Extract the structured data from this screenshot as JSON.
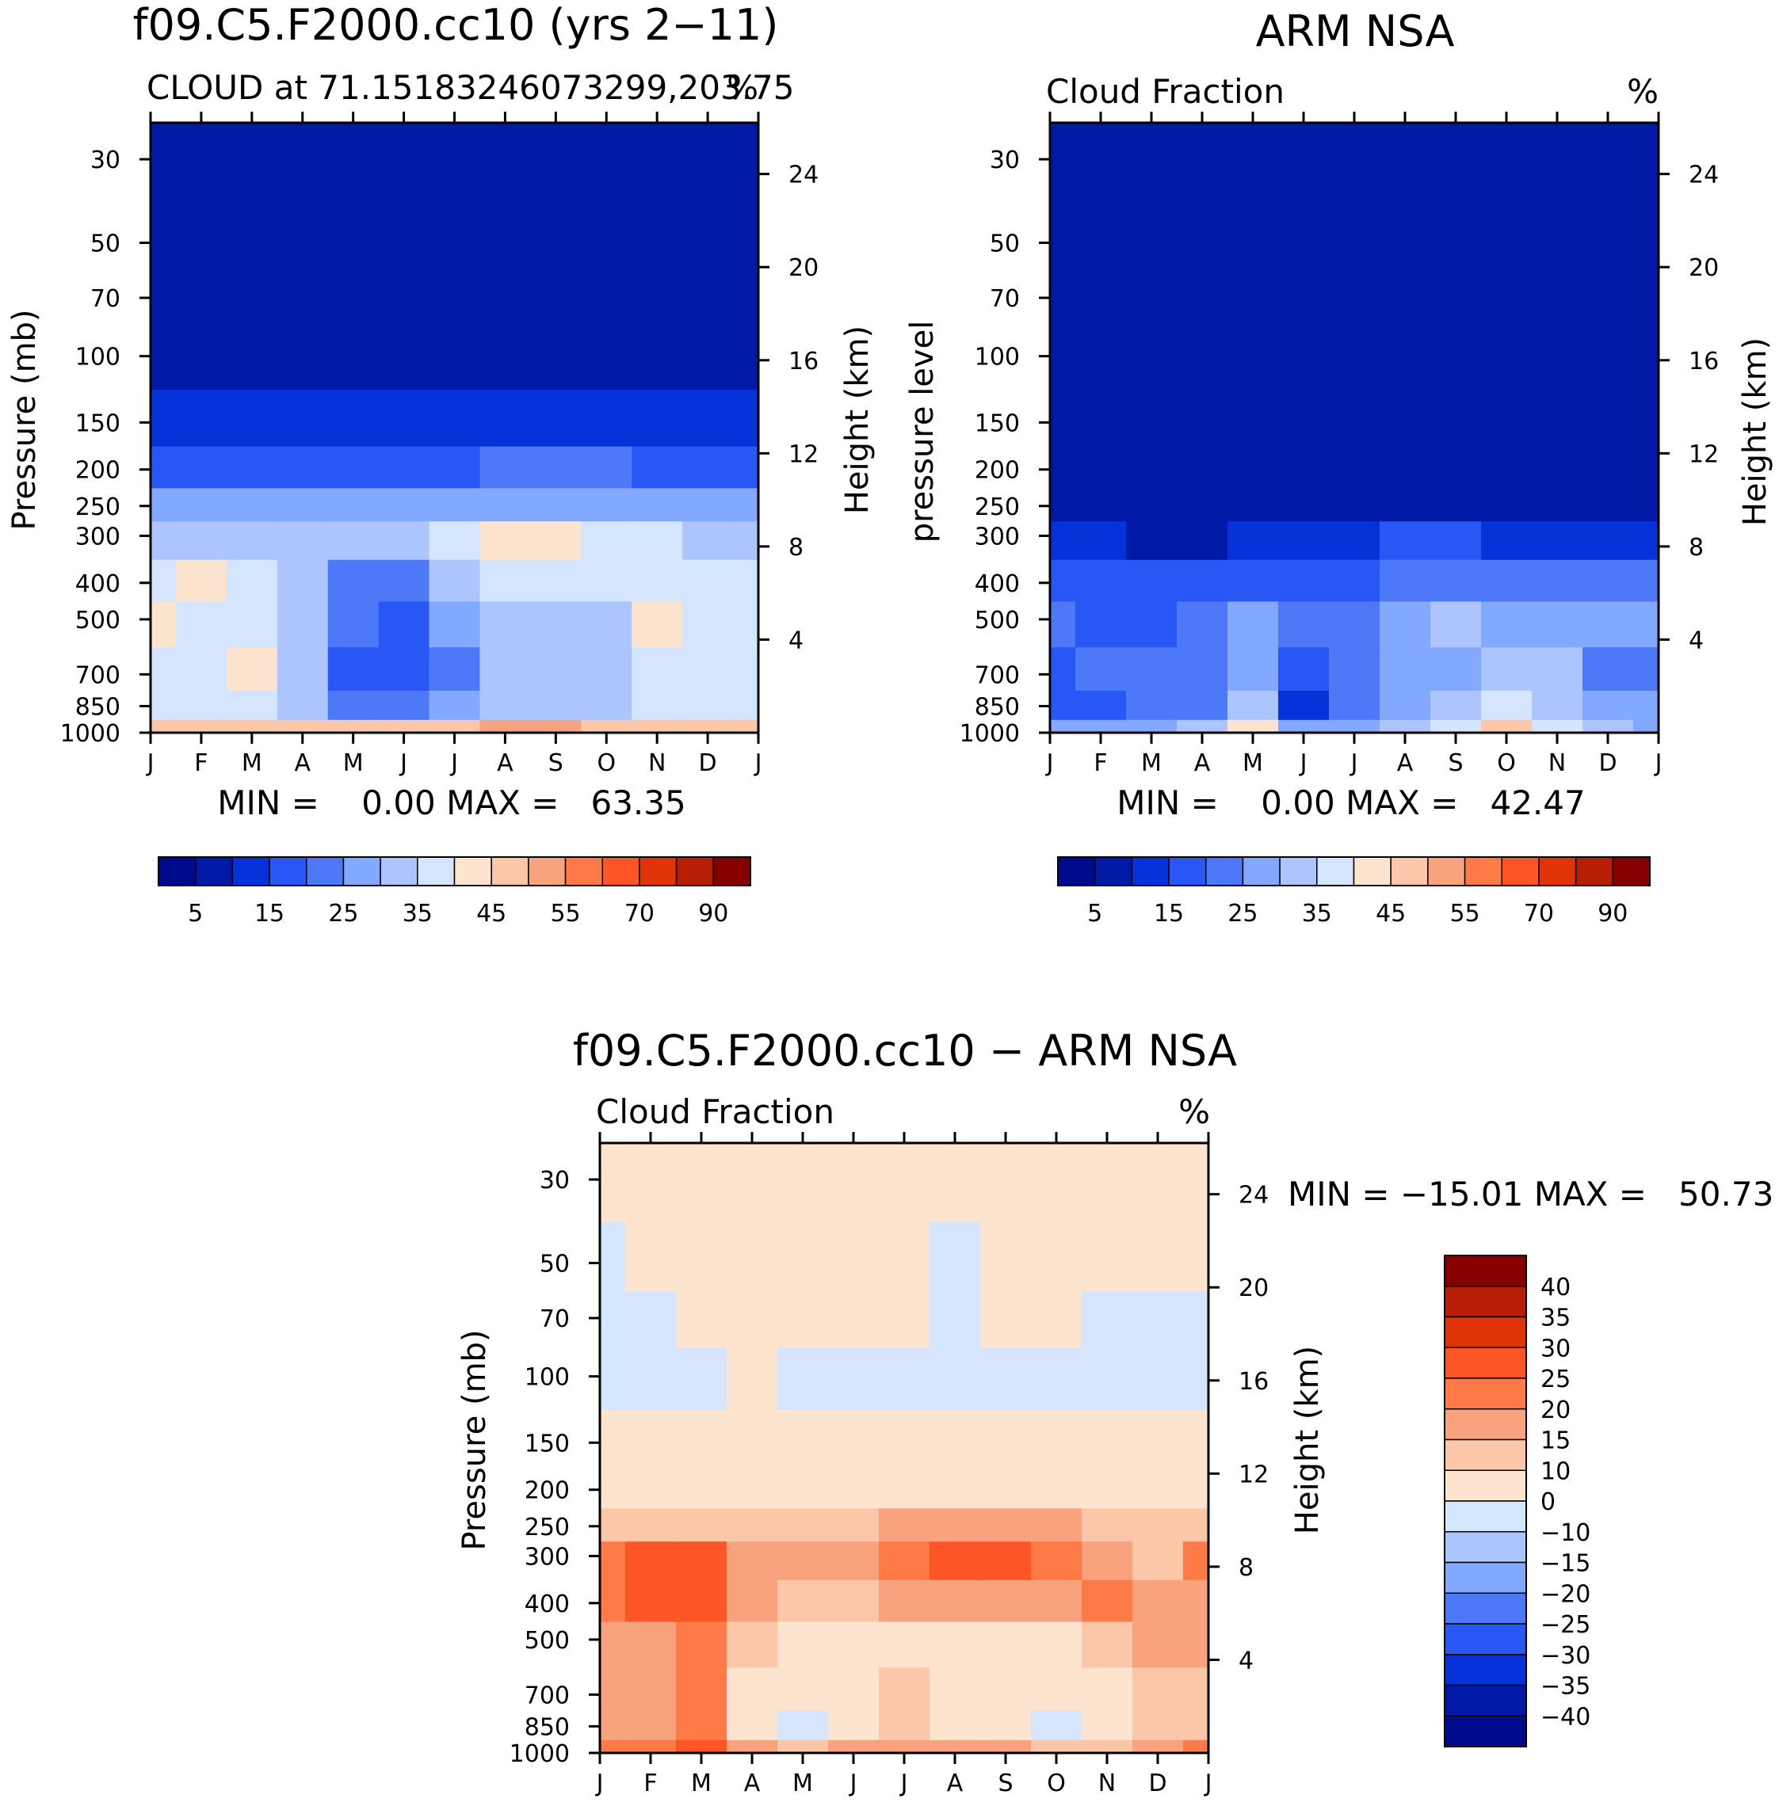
{
  "figure": {
    "panels": [
      {
        "id": "model",
        "title": "f09.C5.F2000.cc10 (yrs 2−11)",
        "left_label": "CLOUD at 71.15183246073299,203.75",
        "right_label": "%",
        "ylabel": "Pressure (mb)",
        "y2label": "Height (km)",
        "minmax": "MIN =    0.00 MAX =   63.35"
      },
      {
        "id": "obs",
        "title": "ARM NSA",
        "left_label": "Cloud Fraction",
        "right_label": "%",
        "ylabel": "pressure level",
        "y2label": "Height (km)",
        "minmax": "MIN =    0.00 MAX =   42.47"
      },
      {
        "id": "diff",
        "title": "f09.C5.F2000.cc10 − ARM NSA",
        "left_label": "Cloud Fraction",
        "right_label": "%",
        "ylabel": "Pressure (mb)",
        "y2label": "Height (km)",
        "minmax": "MIN = −15.01 MAX =   50.73"
      }
    ]
  },
  "chart_data": [
    {
      "type": "heatmap",
      "title": "f09.C5.F2000.cc10 (yrs 2−11)",
      "subtitle": "CLOUD at 71.15183246073299,203.75",
      "units": "%",
      "xlabel": "",
      "ylabel": "Pressure (mb)",
      "y2label": "Height (km)",
      "x": [
        "J",
        "F",
        "M",
        "A",
        "M",
        "J",
        "J",
        "A",
        "S",
        "O",
        "N",
        "D",
        "J"
      ],
      "y": [
        1000,
        850,
        700,
        500,
        400,
        300,
        250,
        200,
        150,
        100,
        70,
        50,
        30
      ],
      "y2_ticks": [
        4,
        8,
        12,
        16,
        20,
        24
      ],
      "values": [
        [
          40,
          40,
          40,
          40,
          40,
          40,
          40,
          45,
          45,
          40,
          40,
          40,
          40
        ],
        [
          30,
          30,
          30,
          25,
          15,
          15,
          20,
          25,
          25,
          25,
          30,
          30,
          30
        ],
        [
          30,
          30,
          35,
          25,
          10,
          10,
          15,
          25,
          25,
          25,
          30,
          30,
          30
        ],
        [
          35,
          30,
          30,
          25,
          15,
          10,
          20,
          25,
          25,
          25,
          35,
          30,
          30
        ],
        [
          30,
          35,
          30,
          25,
          15,
          15,
          25,
          30,
          30,
          30,
          30,
          30,
          30
        ],
        [
          25,
          25,
          25,
          25,
          25,
          25,
          30,
          35,
          35,
          30,
          30,
          25,
          25
        ],
        [
          20,
          20,
          20,
          20,
          20,
          20,
          20,
          20,
          20,
          20,
          20,
          20,
          20
        ],
        [
          10,
          10,
          10,
          10,
          10,
          10,
          10,
          15,
          15,
          15,
          10,
          10,
          10
        ],
        [
          5,
          5,
          5,
          5,
          5,
          5,
          5,
          5,
          5,
          5,
          5,
          5,
          5
        ],
        [
          0,
          0,
          0,
          0,
          0,
          0,
          0,
          0,
          0,
          0,
          0,
          0,
          0
        ],
        [
          0,
          0,
          0,
          0,
          0,
          0,
          0,
          0,
          0,
          0,
          0,
          0,
          0
        ],
        [
          0,
          0,
          0,
          0,
          0,
          0,
          0,
          0,
          0,
          0,
          0,
          0,
          0
        ],
        [
          0,
          0,
          0,
          0,
          0,
          0,
          0,
          0,
          0,
          0,
          0,
          0,
          0
        ]
      ],
      "min": 0.0,
      "max": 63.35,
      "colorbar_labels": [
        "5",
        "15",
        "25",
        "35",
        "45",
        "55",
        "70",
        "90"
      ]
    },
    {
      "type": "heatmap",
      "title": "ARM NSA",
      "subtitle": "Cloud Fraction",
      "units": "%",
      "xlabel": "",
      "ylabel": "pressure level",
      "y2label": "Height (km)",
      "x": [
        "J",
        "F",
        "M",
        "A",
        "M",
        "J",
        "J",
        "A",
        "S",
        "O",
        "N",
        "D",
        "J"
      ],
      "y": [
        1000,
        850,
        700,
        500,
        400,
        300,
        250,
        200,
        150,
        100,
        70,
        50,
        30
      ],
      "y2_ticks": [
        4,
        8,
        12,
        16,
        20,
        24
      ],
      "values": [
        [
          20,
          20,
          20,
          25,
          35,
          20,
          20,
          25,
          30,
          40,
          30,
          25,
          20
        ],
        [
          10,
          10,
          15,
          15,
          25,
          5,
          15,
          20,
          25,
          30,
          25,
          20,
          20
        ],
        [
          10,
          15,
          15,
          15,
          20,
          10,
          15,
          20,
          20,
          25,
          25,
          15,
          15
        ],
        [
          15,
          10,
          10,
          15,
          20,
          15,
          15,
          20,
          25,
          20,
          20,
          20,
          20
        ],
        [
          10,
          10,
          10,
          10,
          10,
          10,
          10,
          15,
          15,
          15,
          15,
          15,
          15
        ],
        [
          5,
          5,
          0,
          0,
          5,
          5,
          5,
          10,
          10,
          5,
          5,
          5,
          5
        ],
        [
          0,
          0,
          0,
          0,
          0,
          0,
          0,
          0,
          0,
          0,
          0,
          0,
          0
        ],
        [
          0,
          0,
          0,
          0,
          0,
          0,
          0,
          0,
          0,
          0,
          0,
          0,
          0
        ],
        [
          0,
          0,
          0,
          0,
          0,
          0,
          0,
          0,
          0,
          0,
          0,
          0,
          0
        ],
        [
          0,
          0,
          0,
          0,
          0,
          0,
          0,
          0,
          0,
          0,
          0,
          0,
          0
        ],
        [
          0,
          0,
          0,
          0,
          0,
          0,
          0,
          0,
          0,
          0,
          0,
          0,
          0
        ],
        [
          0,
          0,
          0,
          0,
          0,
          0,
          0,
          0,
          0,
          0,
          0,
          0,
          0
        ],
        [
          0,
          0,
          0,
          0,
          0,
          0,
          0,
          0,
          0,
          0,
          0,
          0,
          0
        ]
      ],
      "min": 0.0,
      "max": 42.47,
      "colorbar_labels": [
        "5",
        "15",
        "25",
        "35",
        "45",
        "55",
        "70",
        "90"
      ]
    },
    {
      "type": "heatmap",
      "title": "f09.C5.F2000.cc10 − ARM NSA",
      "subtitle": "Cloud Fraction",
      "units": "%",
      "xlabel": "",
      "ylabel": "Pressure (mb)",
      "y2label": "Height (km)",
      "x": [
        "J",
        "F",
        "M",
        "A",
        "M",
        "J",
        "J",
        "A",
        "S",
        "O",
        "N",
        "D",
        "J"
      ],
      "y": [
        1000,
        850,
        700,
        500,
        400,
        300,
        250,
        200,
        150,
        100,
        70,
        50,
        30
      ],
      "y2_ticks": [
        4,
        8,
        12,
        16,
        20,
        24
      ],
      "values": [
        [
          20,
          20,
          25,
          15,
          10,
          15,
          15,
          15,
          15,
          10,
          10,
          15,
          20
        ],
        [
          15,
          15,
          20,
          5,
          -5,
          5,
          10,
          5,
          5,
          -5,
          5,
          10,
          10
        ],
        [
          15,
          15,
          20,
          5,
          5,
          5,
          10,
          5,
          5,
          5,
          5,
          10,
          10
        ],
        [
          15,
          15,
          20,
          10,
          5,
          5,
          5,
          5,
          5,
          5,
          10,
          15,
          15
        ],
        [
          20,
          25,
          25,
          15,
          10,
          10,
          15,
          15,
          15,
          15,
          20,
          15,
          15
        ],
        [
          20,
          25,
          25,
          15,
          15,
          15,
          20,
          25,
          25,
          20,
          15,
          10,
          20
        ],
        [
          10,
          10,
          10,
          10,
          10,
          10,
          15,
          15,
          15,
          15,
          10,
          10,
          10
        ],
        [
          5,
          5,
          5,
          5,
          5,
          5,
          5,
          5,
          5,
          5,
          5,
          5,
          5
        ],
        [
          5,
          5,
          5,
          5,
          5,
          5,
          5,
          5,
          5,
          5,
          5,
          5,
          5
        ],
        [
          -5,
          -5,
          -5,
          5,
          -5,
          -5,
          -5,
          -5,
          -5,
          -5,
          -5,
          -5,
          -5
        ],
        [
          -5,
          -5,
          5,
          5,
          5,
          5,
          5,
          -5,
          5,
          5,
          -5,
          -5,
          -5
        ],
        [
          -5,
          5,
          5,
          5,
          5,
          5,
          5,
          -5,
          5,
          5,
          5,
          5,
          5
        ],
        [
          5,
          5,
          5,
          5,
          5,
          5,
          5,
          5,
          5,
          5,
          5,
          5,
          5
        ]
      ],
      "min": -15.01,
      "max": 50.73,
      "colorbar_labels": [
        "40",
        "35",
        "30",
        "25",
        "20",
        "15",
        "10",
        "0",
        "−10",
        "−15",
        "−20",
        "−25",
        "−30",
        "−35",
        "−40"
      ]
    }
  ],
  "colors": {
    "seq_levels": [
      0,
      5,
      10,
      15,
      20,
      25,
      30,
      35,
      40,
      45,
      50,
      55,
      60,
      70,
      80,
      90
    ],
    "seq_palette": [
      "#000a8f",
      "#0019a6",
      "#0633d9",
      "#2857f5",
      "#4d78f7",
      "#83a8ff",
      "#adc5ff",
      "#d4e5fd",
      "#fde4cf",
      "#fcc6a8",
      "#f9a27e",
      "#ff7a46",
      "#fd5525",
      "#e03308",
      "#b81d05",
      "#860000"
    ],
    "diff_levels": [
      -40,
      -35,
      -30,
      -25,
      -20,
      -15,
      -10,
      0,
      10,
      15,
      20,
      25,
      30,
      35,
      40
    ],
    "diff_palette": [
      "#000a8f",
      "#0019a6",
      "#0633d9",
      "#2857f5",
      "#4d78f7",
      "#83a8ff",
      "#adc5ff",
      "#d4e5fd",
      "#fde4cf",
      "#fcc6a8",
      "#f9a27e",
      "#ff7a46",
      "#fd5525",
      "#e03308",
      "#b81d05",
      "#860000"
    ]
  }
}
